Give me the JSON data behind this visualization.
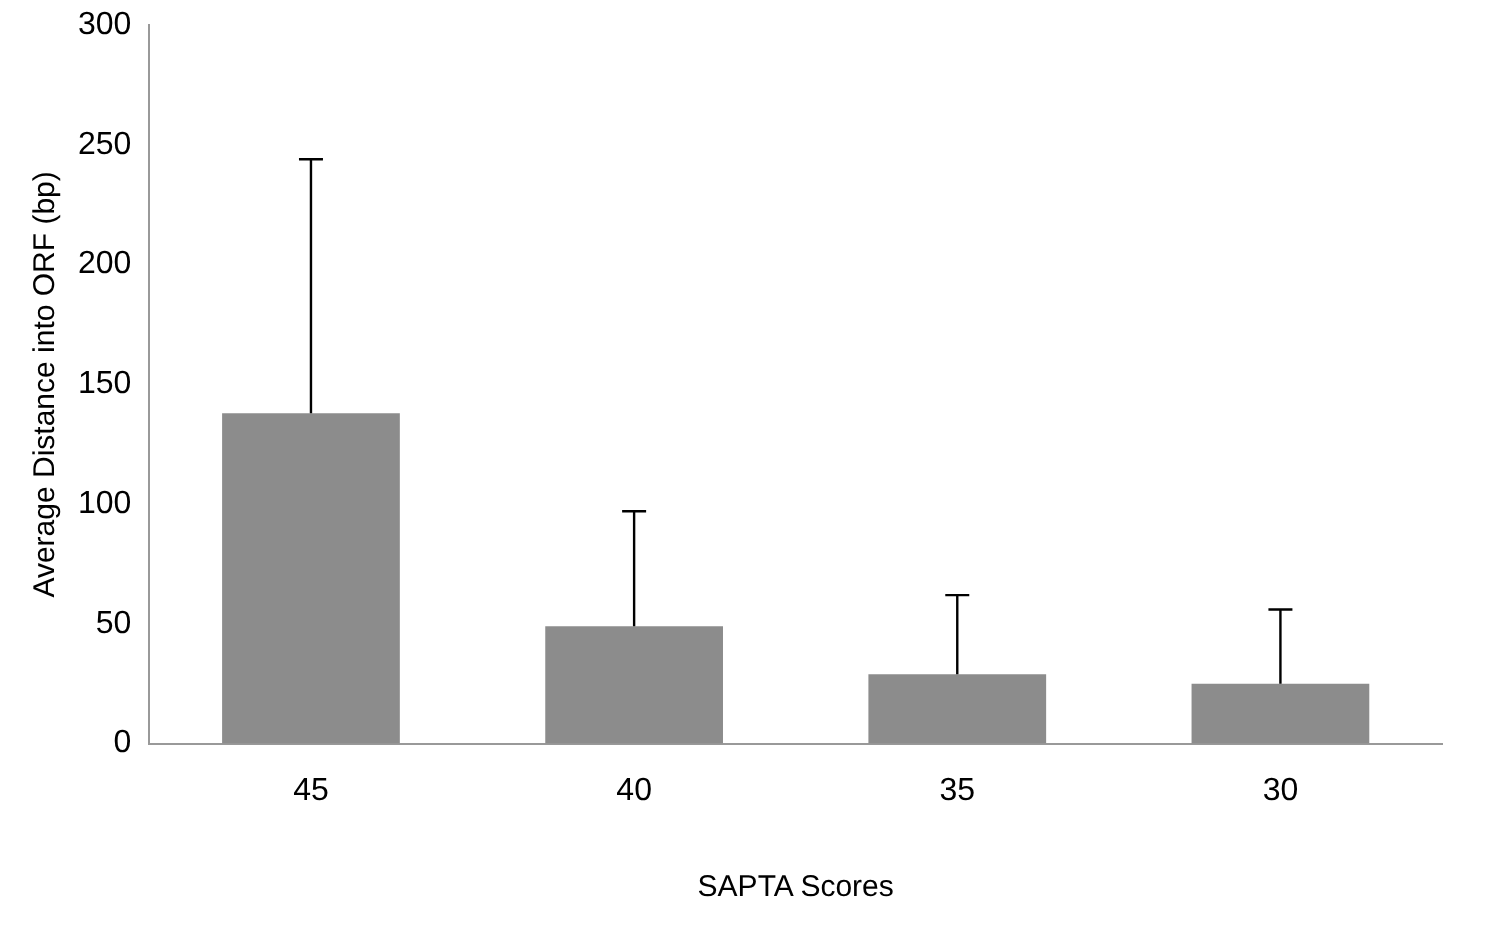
{
  "chart_data": {
    "type": "bar",
    "xlabel": "SAPTA Scores",
    "ylabel": "Average Distance into ORF (bp)",
    "categories": [
      "45",
      "40",
      "35",
      "30"
    ],
    "values": [
      138,
      49,
      29,
      25
    ],
    "errors": [
      [
        138,
        244
      ],
      [
        49,
        97
      ],
      [
        29,
        62
      ],
      [
        25,
        56
      ]
    ],
    "color": "#8c8c8c",
    "ylim": [
      0,
      300
    ],
    "yticks": [
      0,
      50,
      100,
      150,
      200,
      250,
      300
    ],
    "grid": false,
    "legend": false
  }
}
